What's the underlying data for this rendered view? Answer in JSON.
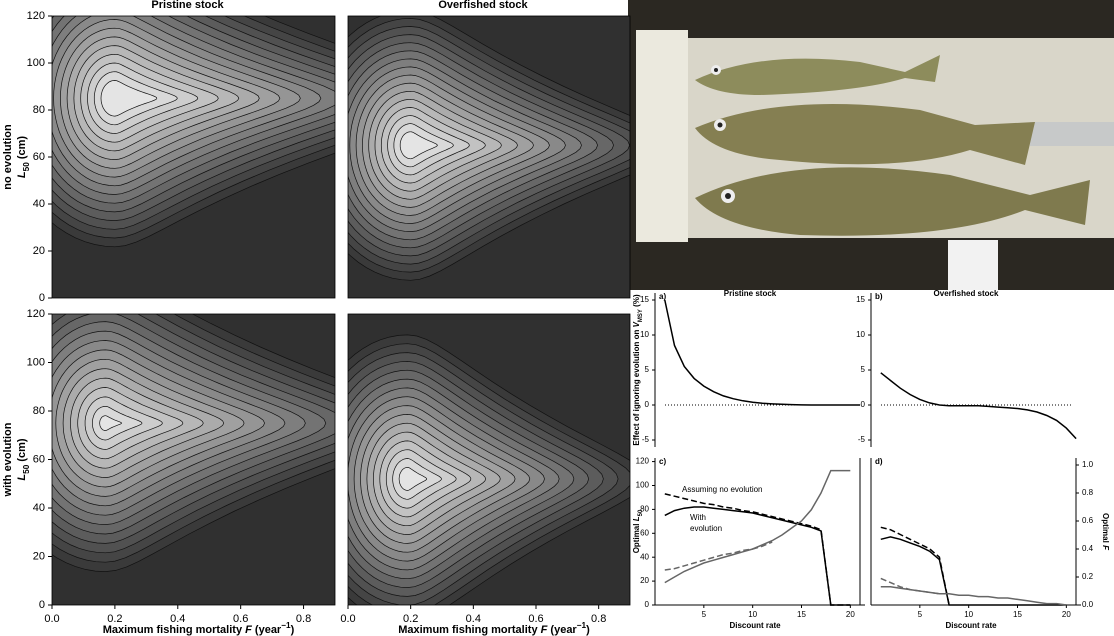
{
  "chart_data": [
    {
      "type": "contour",
      "title": "Pristine stock",
      "row_label": "no evolution",
      "ylabel": [
        "L",
        "50",
        " (cm)"
      ],
      "xlim": [
        0,
        0.9
      ],
      "ylim": [
        0,
        120
      ],
      "yticks": [
        0,
        20,
        40,
        60,
        80,
        100,
        120
      ]
    },
    {
      "type": "contour",
      "title": "Overfished stock",
      "xlim": [
        0,
        0.9
      ],
      "ylim": [
        0,
        120
      ]
    },
    {
      "type": "contour",
      "row_label": "with evolution",
      "ylabel": [
        "L",
        "50",
        " (cm)"
      ],
      "xlim": [
        0,
        0.9
      ],
      "ylim": [
        0,
        120
      ],
      "yticks": [
        0,
        20,
        40,
        60,
        80,
        100,
        120
      ],
      "xticks": [
        {
          "value": 0,
          "label": "0.0"
        },
        0.2,
        0.4,
        0.6,
        0.8
      ],
      "xlabel": [
        "Maximum fishing mortality ",
        "F",
        " (year",
        "−1",
        ")"
      ]
    },
    {
      "type": "contour",
      "xlim": [
        0,
        0.9
      ],
      "ylim": [
        0,
        120
      ],
      "xticks": [
        {
          "value": 0,
          "label": "0.0"
        },
        0.2,
        0.4,
        0.6,
        0.8
      ],
      "xlabel": [
        "Maximum fishing mortality ",
        "F",
        " (year",
        "−1",
        ")"
      ]
    },
    {
      "type": "line",
      "panel": "a)",
      "title": "Pristine stock",
      "ylabel": [
        "Effect of ignoring evolution on ",
        "V",
        "MSY",
        " (%)"
      ],
      "xlim": [
        0,
        21.5
      ],
      "ylim": [
        -6,
        16
      ],
      "yticks": [
        -5,
        0,
        5,
        10,
        15
      ],
      "hline": 0,
      "x": [
        1,
        2,
        3,
        4,
        5,
        6,
        7,
        8,
        9,
        10,
        11,
        12,
        13,
        14,
        15,
        16,
        17,
        18,
        19,
        20,
        21
      ],
      "series": [
        {
          "color": "#000000",
          "values": [
            15,
            8.5,
            5.5,
            3.8,
            2.7,
            1.9,
            1.3,
            0.9,
            0.6,
            0.4,
            0.25,
            0.15,
            0.1,
            0.05,
            0.02,
            0,
            0,
            0,
            0,
            0,
            0
          ]
        }
      ]
    },
    {
      "type": "line",
      "panel": "b)",
      "title": "Overfished stock",
      "xlim": [
        0,
        21.5
      ],
      "ylim": [
        -6,
        16
      ],
      "yticks": [
        -5,
        0,
        5,
        10,
        15
      ],
      "hline": 0,
      "x": [
        1,
        2,
        3,
        4,
        5,
        6,
        7,
        8,
        9,
        10,
        11,
        12,
        13,
        14,
        15,
        16,
        17,
        18,
        19,
        20,
        21
      ],
      "series": [
        {
          "color": "#000000",
          "values": [
            4.6,
            3.5,
            2.4,
            1.5,
            0.8,
            0.3,
            0,
            -0.1,
            -0.1,
            -0.1,
            -0.1,
            -0.2,
            -0.3,
            -0.4,
            -0.5,
            -0.7,
            -1,
            -1.5,
            -2.2,
            -3.3,
            -4.8
          ]
        }
      ]
    },
    {
      "type": "line",
      "panel": "c)",
      "ylabel": [
        "Optimal ",
        "L",
        "50"
      ],
      "xlabel": "Discount rate",
      "annotations": [
        "Assuming no evolution",
        "With",
        "evolution"
      ],
      "xlim": [
        0,
        21.5
      ],
      "ylim": [
        0,
        123
      ],
      "yticks": [
        0,
        20,
        40,
        60,
        80,
        100,
        120
      ],
      "xticks": [
        5,
        10,
        15,
        20
      ],
      "y2lim": [
        0,
        1.05
      ],
      "x": [
        1,
        2,
        3,
        4,
        5,
        6,
        7,
        8,
        9,
        10,
        11,
        12,
        13,
        14,
        15,
        16,
        17,
        18,
        19,
        20
      ],
      "series": [
        {
          "color": "#000000",
          "dash": false,
          "values": [
            75,
            79,
            81,
            82,
            82,
            81,
            80,
            79,
            78,
            77,
            75,
            73,
            71,
            69,
            67,
            65,
            62,
            0,
            0,
            0
          ]
        },
        {
          "color": "#000000",
          "dash": true,
          "values": [
            93,
            91,
            89,
            87,
            85,
            84,
            82,
            81,
            79,
            78,
            76,
            74,
            72,
            70,
            68,
            66,
            63,
            0,
            0,
            0
          ]
        },
        {
          "color": "#666666",
          "dash": false,
          "axis": "y2",
          "values": [
            0.16,
            0.2,
            0.24,
            0.27,
            0.3,
            0.32,
            0.34,
            0.36,
            0.38,
            0.4,
            0.43,
            0.46,
            0.5,
            0.55,
            0.6,
            0.68,
            0.8,
            0.96,
            0.96,
            0.96
          ]
        },
        {
          "color": "#666666",
          "dash": true,
          "axis": "y2",
          "values": [
            0.25,
            0.26,
            0.28,
            0.3,
            0.32,
            0.34,
            0.36,
            0.37,
            0.39,
            0.4,
            0.42,
            0.45,
            null,
            null,
            null,
            null,
            null,
            null,
            null,
            null
          ]
        }
      ]
    },
    {
      "type": "line",
      "panel": "d)",
      "ylabel2": [
        "Optimal ",
        "F"
      ],
      "xlabel": "Discount rate",
      "xlim": [
        0,
        21.5
      ],
      "ylim": [
        0,
        123
      ],
      "xticks": [
        5,
        10,
        15,
        20
      ],
      "y2lim": [
        0,
        1.05
      ],
      "y2ticks": [
        {
          "value": 0,
          "label": "0.0"
        },
        0.2,
        0.4,
        0.6,
        0.8,
        {
          "value": 1,
          "label": "1.0"
        }
      ],
      "x": [
        1,
        2,
        3,
        4,
        5,
        6,
        7,
        8,
        9,
        10,
        11,
        12,
        13,
        14,
        15,
        16,
        17,
        18,
        19,
        20
      ],
      "series": [
        {
          "color": "#000000",
          "dash": false,
          "values": [
            55,
            57,
            55,
            52,
            49,
            45,
            38,
            0,
            0,
            0,
            0,
            0,
            0,
            0,
            0,
            0,
            0,
            0,
            0,
            0
          ]
        },
        {
          "color": "#000000",
          "dash": true,
          "values": [
            65,
            63,
            59,
            55,
            51,
            47,
            40,
            0,
            null,
            null,
            null,
            null,
            null,
            null,
            null,
            null,
            null,
            null,
            null,
            null
          ]
        },
        {
          "color": "#666666",
          "dash": false,
          "axis": "y2",
          "values": [
            0.13,
            0.13,
            0.12,
            0.11,
            0.1,
            0.09,
            0.08,
            0.08,
            0.07,
            0.07,
            0.06,
            0.06,
            0.05,
            0.05,
            0.04,
            0.03,
            0.02,
            0.01,
            0.01,
            0
          ]
        },
        {
          "color": "#666666",
          "dash": true,
          "axis": "y2",
          "values": [
            0.19,
            0.16,
            0.13,
            0.11,
            0.1,
            0.09,
            0.08,
            0.08,
            null,
            null,
            null,
            null,
            null,
            null,
            null,
            null,
            null,
            null,
            null,
            null
          ]
        }
      ]
    }
  ]
}
